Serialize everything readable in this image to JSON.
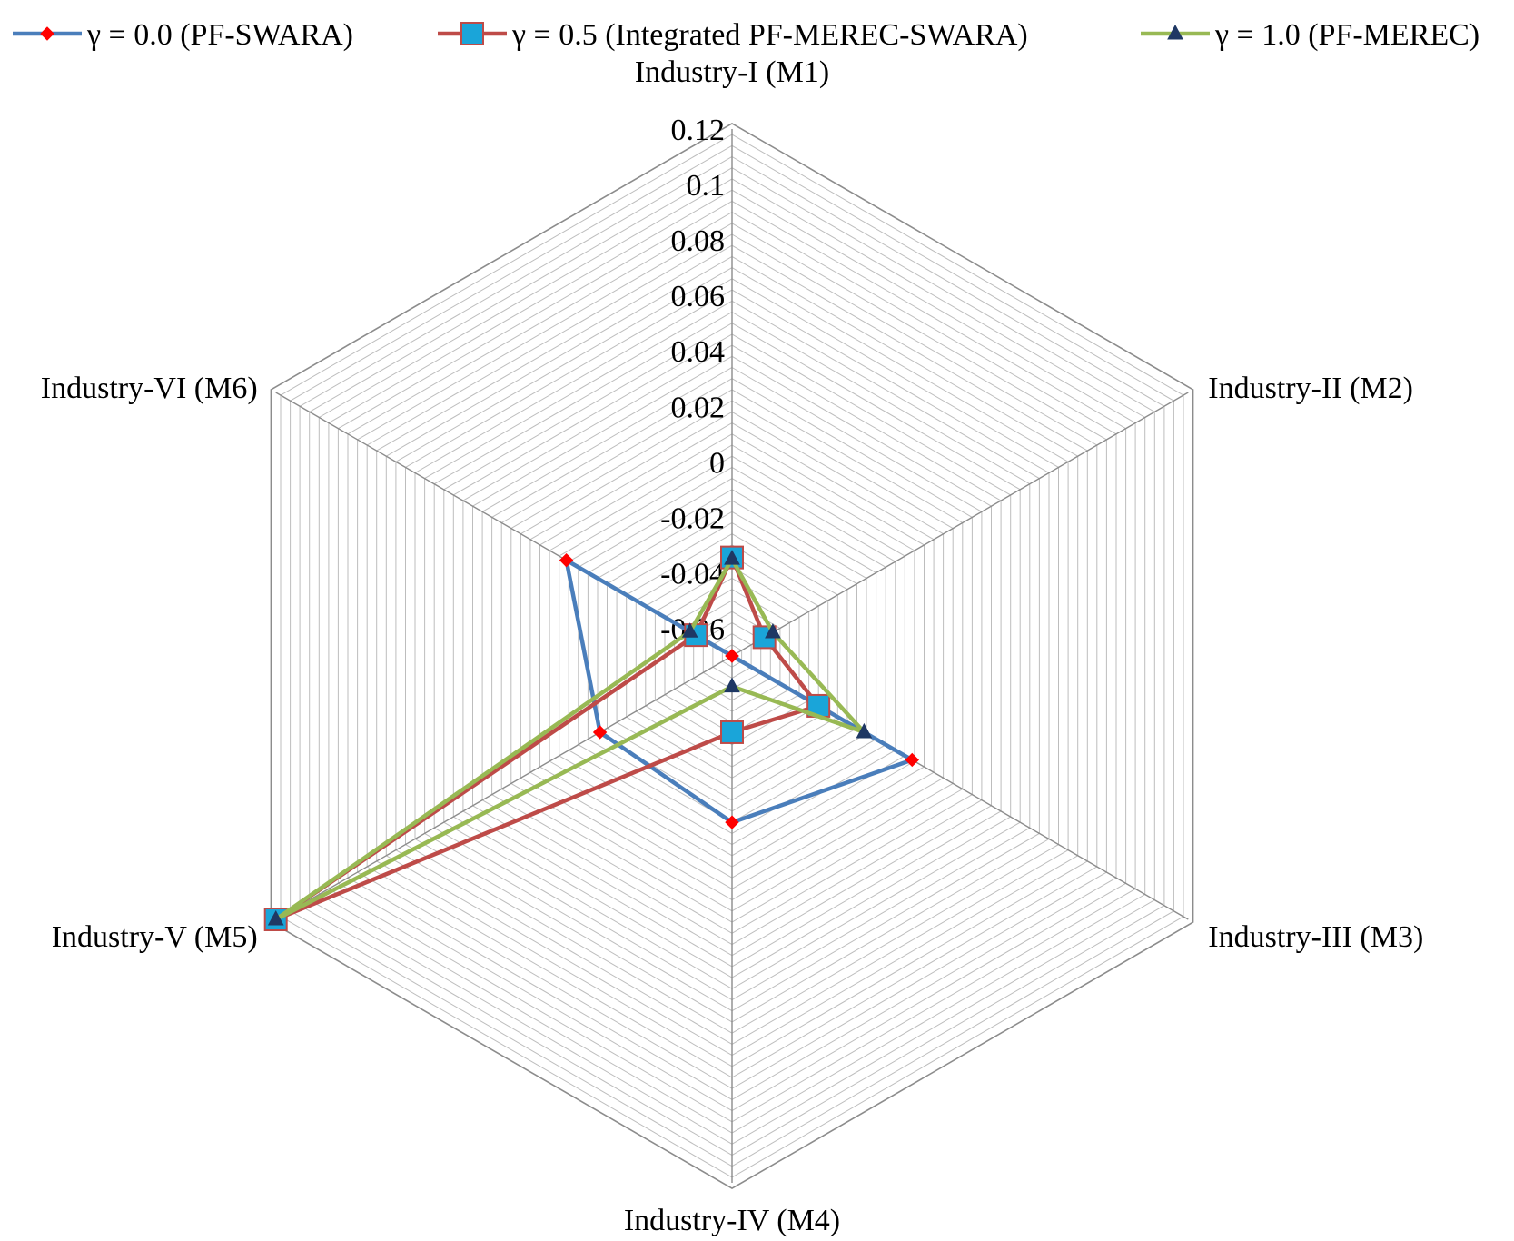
{
  "chart_data": {
    "type": "radar",
    "title": "",
    "categories": [
      "Industry-I (M1)",
      "Industry-II (M2)",
      "Industry-III (M3)",
      "Industry-IV (M4)",
      "Industry-V (M5)",
      "Industry-VI (M6)"
    ],
    "r_ticks": [
      "0.12",
      "0.1",
      "0.08",
      "0.06",
      "0.04",
      "0.02",
      "0",
      "-0.02",
      "-0.04",
      "-0.06"
    ],
    "r_range": [
      -0.07,
      0.12
    ],
    "grid": true,
    "legend_position": "top",
    "series": [
      {
        "name": "γ = 0.0 (PF-SWARA)",
        "color": "#4a7ebb",
        "marker": "diamond",
        "marker_color": "#ff0000",
        "values": [
          -0.07,
          -0.07,
          0.005,
          -0.01,
          -0.015,
          -0.001
        ]
      },
      {
        "name": "γ = 0.5 (Integrated PF-MEREC-SWARA)",
        "color": "#be4b48",
        "marker": "square",
        "marker_color": "#1aa5d9",
        "values": [
          -0.0345,
          -0.0565,
          -0.034,
          -0.0425,
          0.12,
          -0.055
        ]
      },
      {
        "name": "γ = 1.0 (PF-MEREC)",
        "color": "#98b954",
        "marker": "triangle",
        "marker_color": "#1f3864",
        "values": [
          -0.035,
          -0.053,
          -0.015,
          -0.059,
          0.12,
          -0.0525
        ]
      }
    ]
  }
}
